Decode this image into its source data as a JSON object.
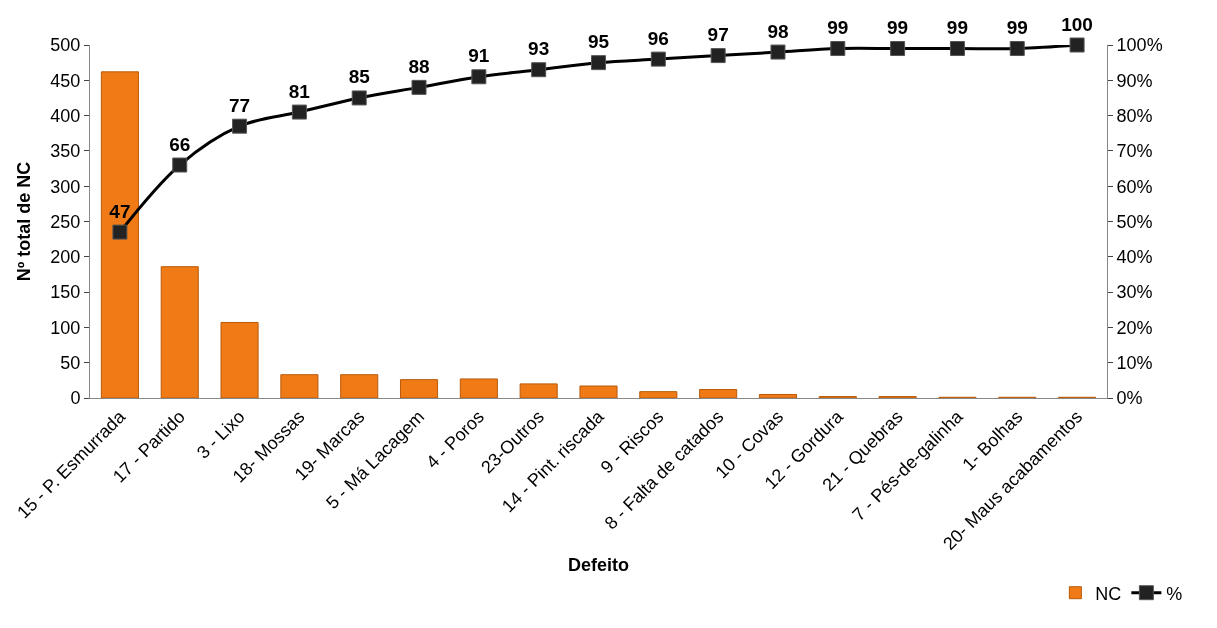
{
  "chart_data": {
    "type": "bar",
    "xlabel": "Defeito",
    "ylabel": "Nº total de NC",
    "categories": [
      "15 - P. Esmurrada",
      "17 - Partido",
      "3 - Lixo",
      "18- Mossas",
      "19- Marcas",
      "5 - Má Lacagem",
      "4 - Poros",
      "23-Outros",
      "14 - Pint. riscada",
      "9 - Riscos",
      "8 - Falta de catados",
      "10 - Covas",
      "12 - Gordura",
      "21 - Quebras",
      "7 - Pés-de-galinha",
      "1- Bolhas",
      "20- Maus acabamentos"
    ],
    "series": [
      {
        "name": "NC",
        "color": "#f07b16",
        "values": [
          462,
          186,
          107,
          33,
          33,
          26,
          27,
          20,
          17,
          9,
          12,
          5,
          2,
          2,
          1,
          1,
          1
        ]
      },
      {
        "name": "%",
        "type": "line",
        "axis": "y2",
        "color": "#000000",
        "marker": "square",
        "data_labels": true,
        "values": [
          47,
          66,
          77,
          81,
          85,
          88,
          91,
          93,
          95,
          96,
          97,
          98,
          99,
          99,
          99,
          99,
          100
        ]
      }
    ],
    "ylim": [
      0,
      500
    ],
    "yticks": [
      0,
      50,
      100,
      150,
      200,
      250,
      300,
      350,
      400,
      450,
      500
    ],
    "y2lim": [
      0,
      100
    ],
    "y2ticks": [
      {
        "value": 0,
        "label": "0%"
      },
      {
        "value": 10,
        "label": "10%"
      },
      {
        "value": 20,
        "label": "20%"
      },
      {
        "value": 30,
        "label": "30%"
      },
      {
        "value": 40,
        "label": "40%"
      },
      {
        "value": 50,
        "label": "50%"
      },
      {
        "value": 60,
        "label": "60%"
      },
      {
        "value": 70,
        "label": "70%"
      },
      {
        "value": 80,
        "label": "80%"
      },
      {
        "value": 90,
        "label": "90%"
      },
      {
        "value": 100,
        "label": "100%"
      }
    ],
    "legend": "bottom right"
  }
}
